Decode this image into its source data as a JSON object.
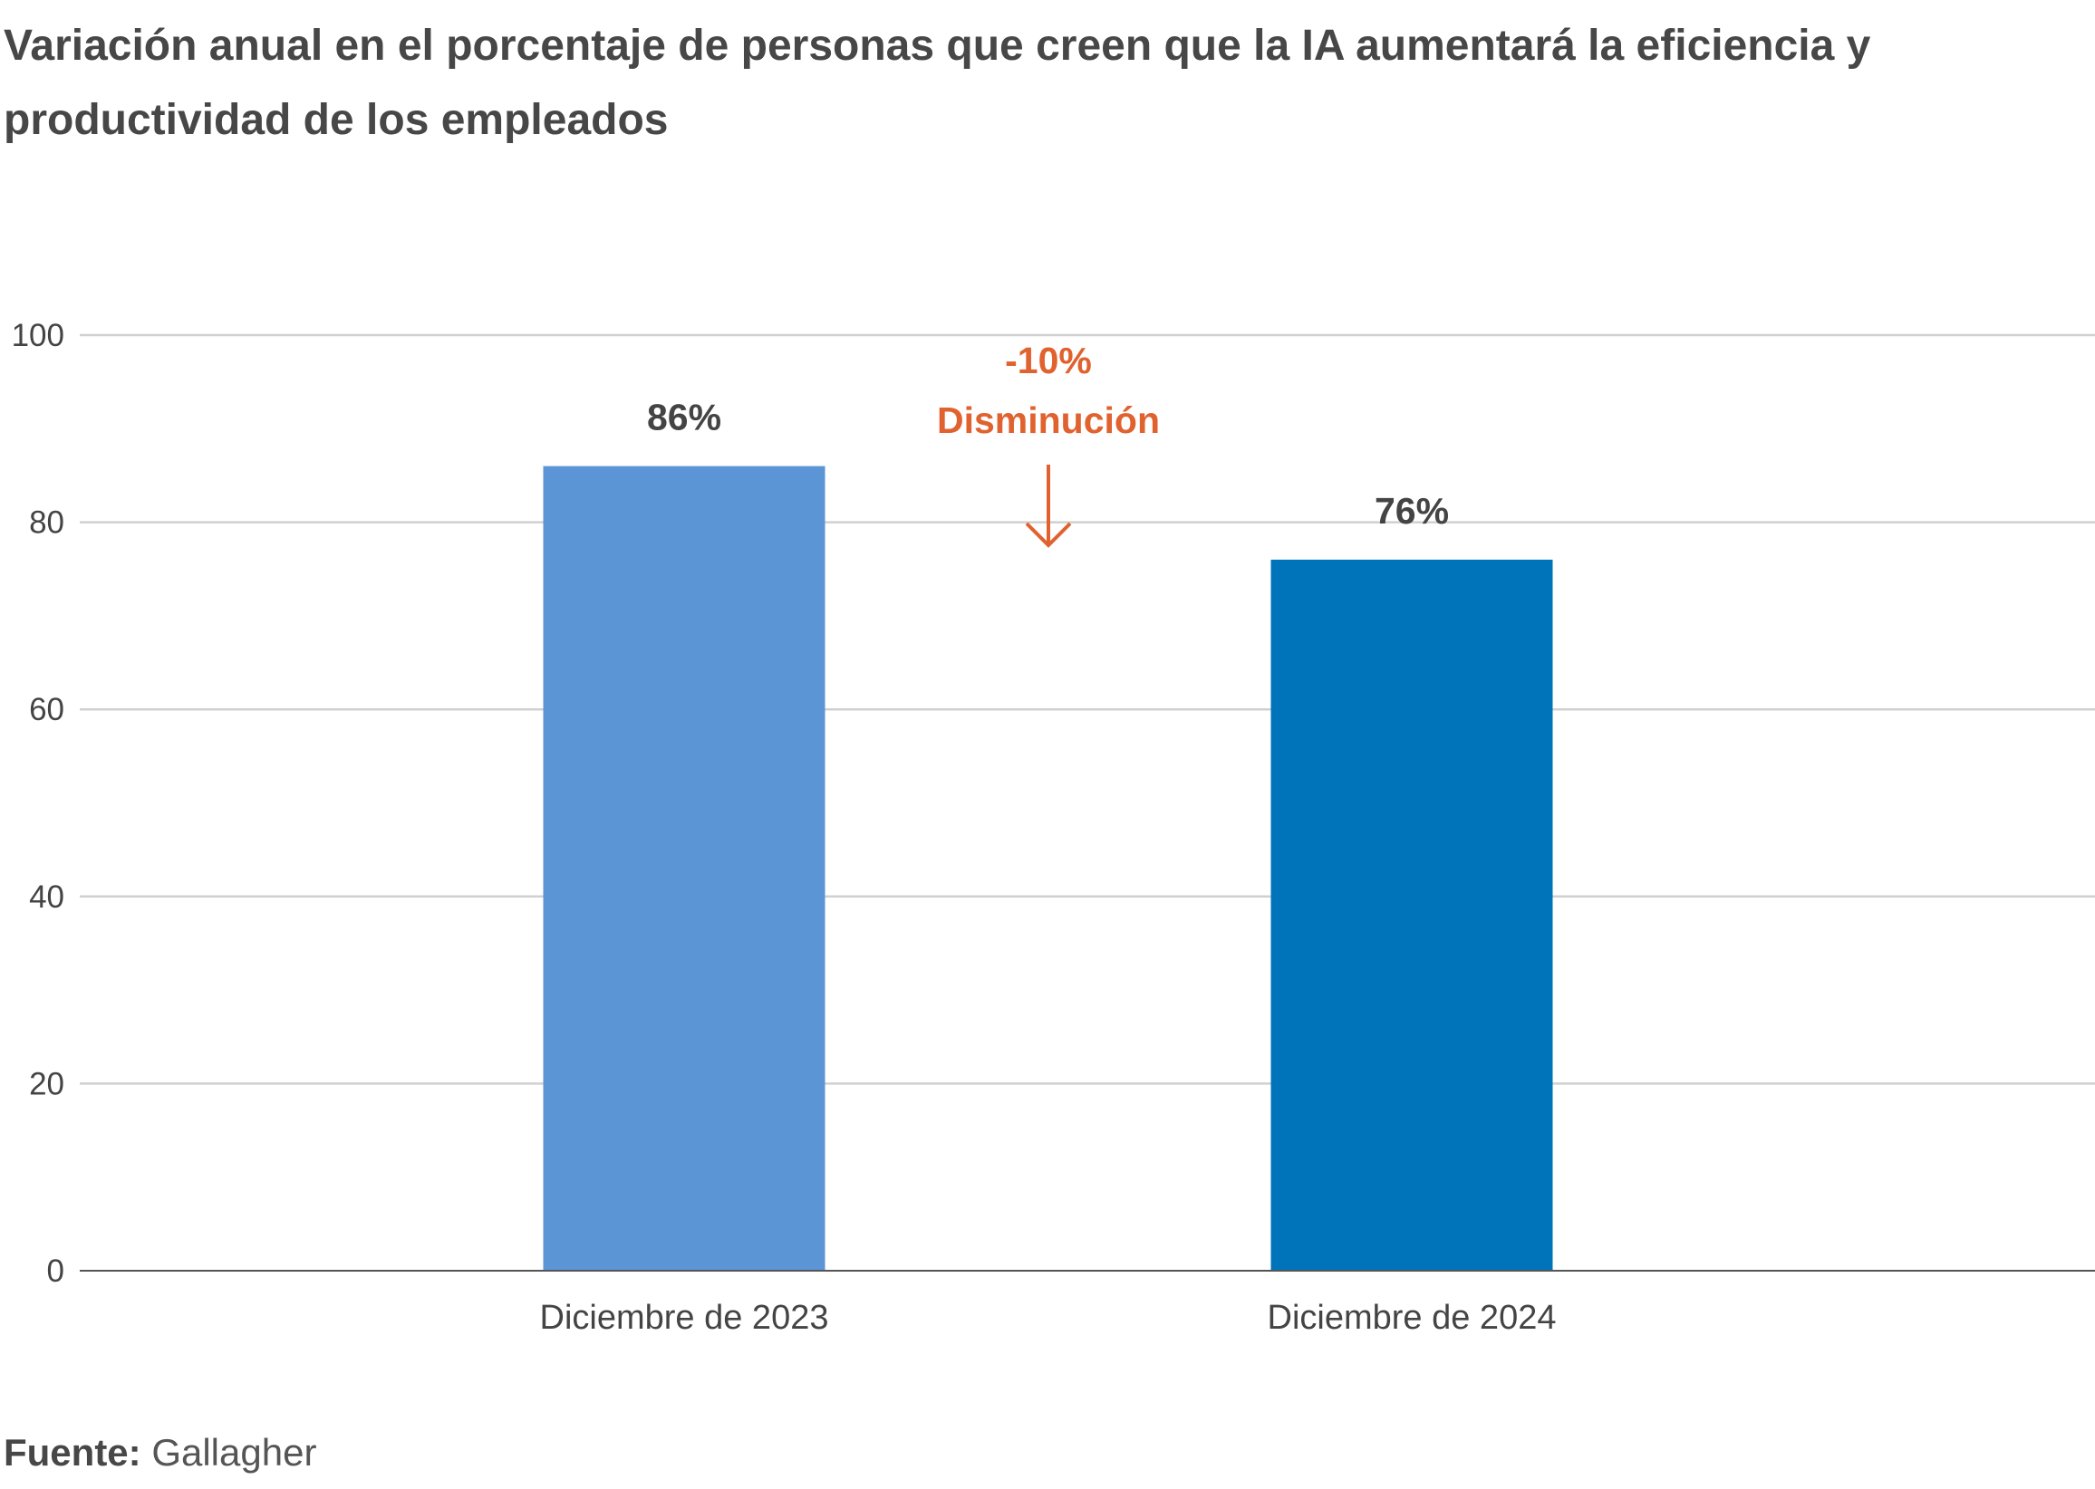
{
  "title": "Variación anual en el porcentaje de personas que creen que la IA aumentará la eficiencia y productividad de los empleados",
  "source": {
    "label": "Fuente:",
    "value": "Gallagher"
  },
  "chart_data": {
    "type": "bar",
    "title": "Variación anual en el porcentaje de personas que creen que la IA aumentará la eficiencia y productividad de los empleados",
    "categories": [
      "Diciembre de 2023",
      "Diciembre de 2024"
    ],
    "values": [
      86,
      76
    ],
    "data_labels": [
      "86%",
      "76%"
    ],
    "colors": [
      "#5b95d6",
      "#0074bb"
    ],
    "ylim": [
      0,
      100
    ],
    "yticks": [
      0,
      20,
      40,
      60,
      80,
      100
    ],
    "grid": true,
    "xlabel": "",
    "ylabel": "",
    "annotation": {
      "value": "-10%",
      "label": "Disminución",
      "color": "#e0622f",
      "icon": "arrow-down-icon"
    }
  }
}
